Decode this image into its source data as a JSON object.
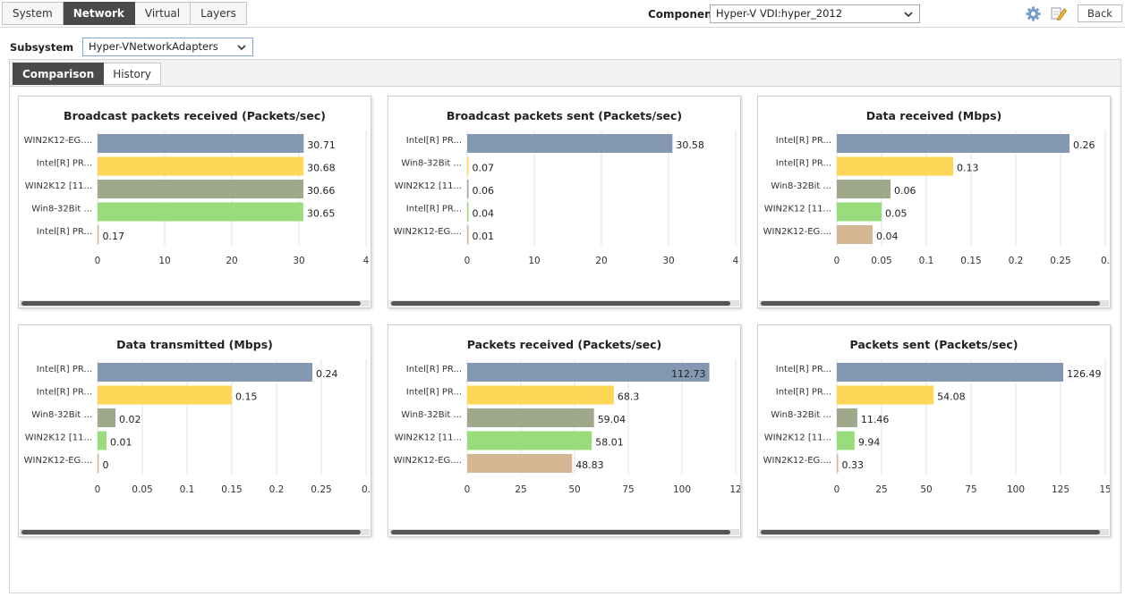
{
  "tabs": [
    {
      "label": "System",
      "active": false
    },
    {
      "label": "Network",
      "active": true
    },
    {
      "label": "Virtual",
      "active": false
    },
    {
      "label": "Layers",
      "active": false
    }
  ],
  "component": {
    "label": "Component",
    "value": "Hyper-V VDI:hyper_2012"
  },
  "toolbar": {
    "back_label": "Back",
    "settings_icon": "gear-icon",
    "edit_icon": "pencil-icon"
  },
  "subsystem": {
    "label": "Subsystem",
    "value": "Hyper-VNetworkAdapters"
  },
  "subtabs": [
    {
      "label": "Comparison",
      "active": true
    },
    {
      "label": "History",
      "active": false
    }
  ],
  "colors": [
    "#8499b1",
    "#fdd755",
    "#9fa88a",
    "#99dc7c",
    "#d5b793"
  ],
  "chart_data": [
    {
      "type": "bar",
      "title": "Broadcast packets received (Packets/sec)",
      "categories": [
        "WIN2K12-EG....",
        "Intel[R] PR...",
        "WIN2K12 [11...",
        "Win8-32Bit ...",
        "Intel[R] PR..."
      ],
      "values": [
        30.71,
        30.68,
        30.66,
        30.65,
        0.17
      ],
      "value_labels": [
        "30.71",
        "30.68",
        "30.66",
        "30.65",
        "0.17"
      ],
      "xlim": [
        0,
        40
      ],
      "ticks": [
        "0",
        "10",
        "20",
        "30",
        "4"
      ]
    },
    {
      "type": "bar",
      "title": "Broadcast packets sent (Packets/sec)",
      "categories": [
        "Intel[R] PR...",
        "Win8-32Bit ...",
        "WIN2K12 [11...",
        "Intel[R] PR...",
        "WIN2K12-EG...."
      ],
      "values": [
        30.58,
        0.07,
        0.06,
        0.04,
        0.01
      ],
      "value_labels": [
        "30.58",
        "0.07",
        "0.06",
        "0.04",
        "0.01"
      ],
      "xlim": [
        0,
        40
      ],
      "ticks": [
        "0",
        "10",
        "20",
        "30",
        "4"
      ]
    },
    {
      "type": "bar",
      "title": "Data received (Mbps)",
      "categories": [
        "Intel[R] PR...",
        "Intel[R] PR...",
        "Win8-32Bit ...",
        "WIN2K12 [11...",
        "WIN2K12-EG...."
      ],
      "values": [
        0.26,
        0.13,
        0.06,
        0.05,
        0.04
      ],
      "value_labels": [
        "0.26",
        "0.13",
        "0.06",
        "0.05",
        "0.04"
      ],
      "xlim": [
        0,
        0.3
      ],
      "ticks": [
        "0",
        "0.05",
        "0.1",
        "0.15",
        "0.2",
        "0.25",
        "0."
      ]
    },
    {
      "type": "bar",
      "title": "Data transmitted (Mbps)",
      "categories": [
        "Intel[R] PR...",
        "Intel[R] PR...",
        "Win8-32Bit ...",
        "WIN2K12 [11...",
        "WIN2K12-EG...."
      ],
      "values": [
        0.24,
        0.15,
        0.02,
        0.01,
        0
      ],
      "value_labels": [
        "0.24",
        "0.15",
        "0.02",
        "0.01",
        "0"
      ],
      "xlim": [
        0,
        0.3
      ],
      "ticks": [
        "0",
        "0.05",
        "0.1",
        "0.15",
        "0.2",
        "0.25",
        "0."
      ]
    },
    {
      "type": "bar",
      "title": "Packets received (Packets/sec)",
      "categories": [
        "Intel[R] PR...",
        "Intel[R] PR...",
        "Win8-32Bit ...",
        "WIN2K12 [11...",
        "WIN2K12-EG...."
      ],
      "values": [
        112.73,
        68.3,
        59.04,
        58.01,
        48.83
      ],
      "value_labels": [
        "112.73",
        "68.3",
        "59.04",
        "58.01",
        "48.83"
      ],
      "inside_first_label": true,
      "xlim": [
        0,
        125
      ],
      "ticks": [
        "0",
        "25",
        "50",
        "75",
        "100",
        "12"
      ]
    },
    {
      "type": "bar",
      "title": "Packets sent (Packets/sec)",
      "categories": [
        "Intel[R] PR...",
        "Intel[R] PR...",
        "Win8-32Bit ...",
        "WIN2K12 [11...",
        "WIN2K12-EG...."
      ],
      "values": [
        126.49,
        54.08,
        11.46,
        9.94,
        0.33
      ],
      "value_labels": [
        "126.49",
        "54.08",
        "11.46",
        "9.94",
        "0.33"
      ],
      "xlim": [
        0,
        150
      ],
      "ticks": [
        "0",
        "25",
        "50",
        "75",
        "100",
        "125",
        "15"
      ]
    }
  ]
}
